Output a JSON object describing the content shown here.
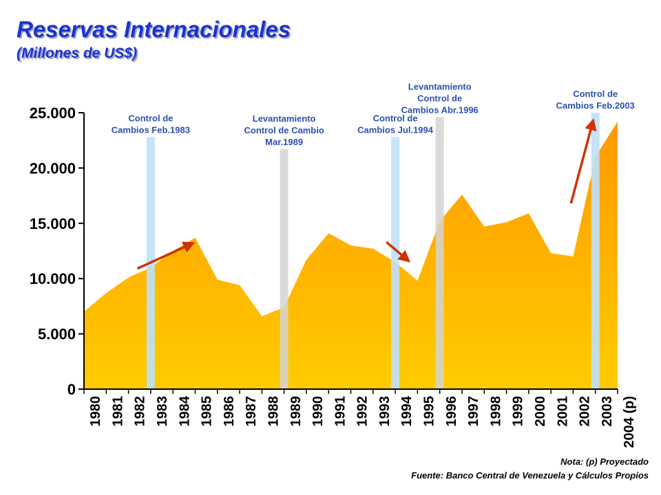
{
  "title": "Reservas Internacionales",
  "subtitle": "(Millones de US$)",
  "footer": {
    "note": "Nota: (p) Proyectado",
    "source": "Fuente: Banco Central de Venezuela y Cálculos Propios"
  },
  "colors": {
    "title": "#1a33cc",
    "annotation": "#2a50b0",
    "area_top": "#ff9900",
    "area_bottom": "#ffcc00",
    "band_control": "#bfe0fa",
    "band_release": "#d4d4d4",
    "arrow": "#cc3300"
  },
  "chart_data": {
    "type": "area",
    "x": [
      "1980",
      "1981",
      "1982",
      "1983",
      "1984",
      "1985",
      "1986",
      "1987",
      "1988",
      "1989",
      "1990",
      "1991",
      "1992",
      "1993",
      "1994",
      "1995",
      "1996",
      "1997",
      "1998",
      "1999",
      "2000",
      "2001",
      "2002",
      "2003",
      "2004 (p)"
    ],
    "values": [
      7000,
      8700,
      10100,
      11000,
      12500,
      13700,
      9900,
      9400,
      6600,
      7400,
      11700,
      14100,
      13000,
      12700,
      11500,
      9800,
      15200,
      17600,
      14700,
      15100,
      15900,
      12300,
      12000,
      21000,
      24200
    ],
    "ylim": [
      0,
      25000
    ],
    "yticks": [
      "0",
      "5.000",
      "10.000",
      "15.000",
      "20.000",
      "25.000"
    ],
    "ytick_values": [
      0,
      5000,
      10000,
      15000,
      20000,
      25000
    ],
    "grid": false,
    "legend": "none",
    "annotations": [
      {
        "year": "1983",
        "kind": "control",
        "label": [
          "Control de",
          "Cambios Feb.1983"
        ],
        "band_top": 22800
      },
      {
        "year": "1989",
        "kind": "release",
        "label": [
          "Levantamiento",
          "Control de Cambio",
          "Mar.1989"
        ],
        "band_top": 21700
      },
      {
        "year": "1994",
        "kind": "control",
        "label": [
          "Control de",
          "Cambios Jul.1994"
        ],
        "band_top": 22800
      },
      {
        "year": "1996",
        "kind": "release",
        "label": [
          "Levantamiento",
          "Control de",
          "Cambios Abr.1996"
        ],
        "band_top": 24600
      },
      {
        "year": "2003",
        "kind": "control",
        "label": [
          "Control de",
          "Cambios Feb.2003"
        ],
        "band_top": 25000
      }
    ],
    "arrows": [
      {
        "from": [
          "1982.4",
          10900
        ],
        "to": [
          "1984.9",
          13200
        ]
      },
      {
        "from": [
          "1993.6",
          13300
        ],
        "to": [
          "1994.6",
          11600
        ]
      },
      {
        "from": [
          "2001.9",
          16800
        ],
        "to": [
          "2002.9",
          24300
        ]
      }
    ]
  }
}
